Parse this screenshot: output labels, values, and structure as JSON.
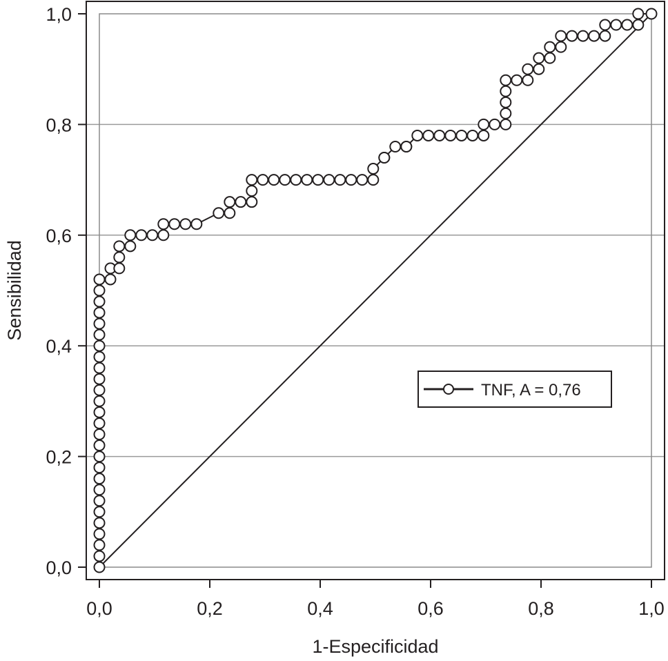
{
  "chart_data": {
    "type": "line",
    "title": "",
    "xlabel": "1-Especificidad",
    "ylabel": "Sensibilidad",
    "xlim": [
      0,
      1
    ],
    "ylim": [
      0,
      1
    ],
    "x_ticks": [
      0,
      0.2,
      0.4,
      0.6,
      0.8,
      1.0
    ],
    "x_tick_labels": [
      "0,0",
      "0,2",
      "0,4",
      "0,6",
      "0,8",
      "1,0"
    ],
    "y_ticks": [
      0,
      0.2,
      0.4,
      0.6,
      0.8,
      1.0
    ],
    "y_tick_labels": [
      "0,0",
      "0,2",
      "0,4",
      "0,6",
      "0,8",
      "1,0"
    ],
    "grid": "horizontal",
    "legend_position": "center-right",
    "reference_line": {
      "from": [
        0,
        0
      ],
      "to": [
        1,
        1
      ]
    },
    "series": [
      {
        "name": "TNF, A = 0,76",
        "marker": "open-circle",
        "x": [
          0,
          0,
          0,
          0,
          0,
          0,
          0,
          0,
          0,
          0,
          0,
          0,
          0,
          0,
          0,
          0,
          0,
          0,
          0,
          0,
          0,
          0,
          0,
          0,
          0,
          0,
          0,
          0.02,
          0.02,
          0.036,
          0.036,
          0.036,
          0.056,
          0.056,
          0.076,
          0.096,
          0.116,
          0.116,
          0.136,
          0.156,
          0.176,
          0.216,
          0.236,
          0.236,
          0.256,
          0.276,
          0.276,
          0.276,
          0.296,
          0.316,
          0.336,
          0.356,
          0.376,
          0.396,
          0.416,
          0.436,
          0.456,
          0.476,
          0.496,
          0.496,
          0.516,
          0.516,
          0.536,
          0.556,
          0.556,
          0.576,
          0.596,
          0.616,
          0.636,
          0.656,
          0.676,
          0.696,
          0.696,
          0.716,
          0.736,
          0.736,
          0.736,
          0.736,
          0.736,
          0.756,
          0.776,
          0.776,
          0.796,
          0.796,
          0.816,
          0.816,
          0.836,
          0.836,
          0.856,
          0.876,
          0.896,
          0.916,
          0.916,
          0.936,
          0.956,
          0.976,
          0.976,
          1.0
        ],
        "y": [
          0,
          0.02,
          0.04,
          0.06,
          0.08,
          0.1,
          0.12,
          0.14,
          0.16,
          0.18,
          0.2,
          0.22,
          0.24,
          0.26,
          0.28,
          0.3,
          0.32,
          0.34,
          0.36,
          0.38,
          0.4,
          0.42,
          0.44,
          0.46,
          0.48,
          0.5,
          0.52,
          0.52,
          0.54,
          0.54,
          0.56,
          0.58,
          0.58,
          0.6,
          0.6,
          0.6,
          0.6,
          0.62,
          0.62,
          0.62,
          0.62,
          0.64,
          0.64,
          0.66,
          0.66,
          0.66,
          0.68,
          0.7,
          0.7,
          0.7,
          0.7,
          0.7,
          0.7,
          0.7,
          0.7,
          0.7,
          0.7,
          0.7,
          0.7,
          0.72,
          0.74,
          0.74,
          0.76,
          0.76,
          0.76,
          0.78,
          0.78,
          0.78,
          0.78,
          0.78,
          0.78,
          0.78,
          0.8,
          0.8,
          0.8,
          0.82,
          0.84,
          0.86,
          0.88,
          0.88,
          0.88,
          0.9,
          0.9,
          0.92,
          0.92,
          0.94,
          0.94,
          0.96,
          0.96,
          0.96,
          0.96,
          0.96,
          0.98,
          0.98,
          0.98,
          0.98,
          1.0,
          1.0
        ]
      }
    ]
  }
}
